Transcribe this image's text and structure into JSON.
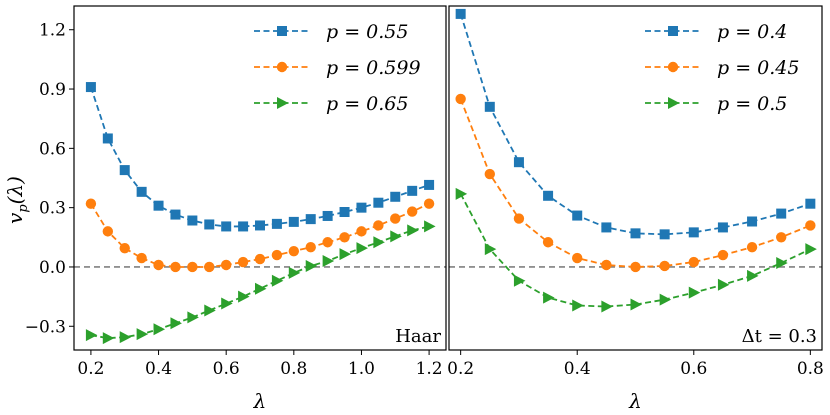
{
  "colors": {
    "blue": "#1f77b4",
    "orange": "#ff7f0e",
    "green": "#2ca02c",
    "zero_line": "#808080",
    "frame": "#000000"
  },
  "chart_data": [
    {
      "type": "line",
      "panel_tag": "Haar",
      "xlabel": "λ",
      "ylabel": "v_p(λ)",
      "xlim": [
        0.15,
        1.25
      ],
      "ylim": [
        -0.42,
        1.32
      ],
      "xticks": [
        0.2,
        0.4,
        0.6,
        0.8,
        1.0,
        1.2
      ],
      "xtick_labels": [
        "0.2",
        "0.4",
        "0.6",
        "0.8",
        "1.0",
        "1.2"
      ],
      "yticks": [
        -0.3,
        0.0,
        0.3,
        0.6,
        0.9,
        1.2
      ],
      "ytick_labels": [
        "−0.3",
        "0.0",
        "0.3",
        "0.6",
        "0.9",
        "1.2"
      ],
      "zero_line": true,
      "legend_position": "top-right",
      "x": [
        0.2,
        0.25,
        0.3,
        0.35,
        0.4,
        0.45,
        0.5,
        0.55,
        0.6,
        0.65,
        0.7,
        0.75,
        0.8,
        0.85,
        0.9,
        0.95,
        1.0,
        1.05,
        1.1,
        1.15,
        1.2
      ],
      "series": [
        {
          "name": "p = 0.55",
          "marker": "square",
          "color": "#1f77b4",
          "values": [
            0.91,
            0.65,
            0.49,
            0.38,
            0.31,
            0.265,
            0.235,
            0.215,
            0.205,
            0.205,
            0.21,
            0.218,
            0.228,
            0.242,
            0.258,
            0.278,
            0.3,
            0.325,
            0.355,
            0.385,
            0.415
          ]
        },
        {
          "name": "p = 0.599",
          "marker": "circle",
          "color": "#ff7f0e",
          "values": [
            0.32,
            0.18,
            0.095,
            0.045,
            0.01,
            0.0,
            0.0,
            0.0,
            0.01,
            0.025,
            0.04,
            0.06,
            0.08,
            0.1,
            0.125,
            0.15,
            0.18,
            0.21,
            0.245,
            0.28,
            0.32
          ]
        },
        {
          "name": "p = 0.65",
          "marker": "triangle-right",
          "color": "#2ca02c",
          "values": [
            -0.345,
            -0.36,
            -0.355,
            -0.34,
            -0.315,
            -0.285,
            -0.255,
            -0.22,
            -0.185,
            -0.15,
            -0.11,
            -0.07,
            -0.03,
            0.005,
            0.03,
            0.065,
            0.095,
            0.125,
            0.155,
            0.185,
            0.205
          ]
        }
      ]
    },
    {
      "type": "line",
      "panel_tag": "Δt = 0.3",
      "xlabel": "λ",
      "ylabel": "",
      "xlim": [
        0.18,
        0.82
      ],
      "ylim": [
        -0.42,
        1.32
      ],
      "xticks": [
        0.2,
        0.4,
        0.6,
        0.8
      ],
      "xtick_labels": [
        "0.2",
        "0.4",
        "0.6",
        "0.8"
      ],
      "yticks": [],
      "ytick_labels": [],
      "zero_line": true,
      "legend_position": "top-right",
      "x": [
        0.2,
        0.25,
        0.3,
        0.35,
        0.4,
        0.45,
        0.5,
        0.55,
        0.6,
        0.65,
        0.7,
        0.75,
        0.8
      ],
      "series": [
        {
          "name": "p = 0.4",
          "marker": "square",
          "color": "#1f77b4",
          "values": [
            1.28,
            0.81,
            0.53,
            0.36,
            0.26,
            0.2,
            0.17,
            0.165,
            0.175,
            0.2,
            0.23,
            0.27,
            0.32
          ]
        },
        {
          "name": "p = 0.45",
          "marker": "circle",
          "color": "#ff7f0e",
          "values": [
            0.85,
            0.47,
            0.245,
            0.125,
            0.045,
            0.01,
            0.0,
            0.005,
            0.025,
            0.06,
            0.1,
            0.15,
            0.21
          ]
        },
        {
          "name": "p = 0.5",
          "marker": "triangle-right",
          "color": "#2ca02c",
          "values": [
            0.37,
            0.09,
            -0.07,
            -0.155,
            -0.195,
            -0.2,
            -0.19,
            -0.165,
            -0.13,
            -0.09,
            -0.045,
            0.02,
            0.09
          ]
        }
      ]
    }
  ]
}
